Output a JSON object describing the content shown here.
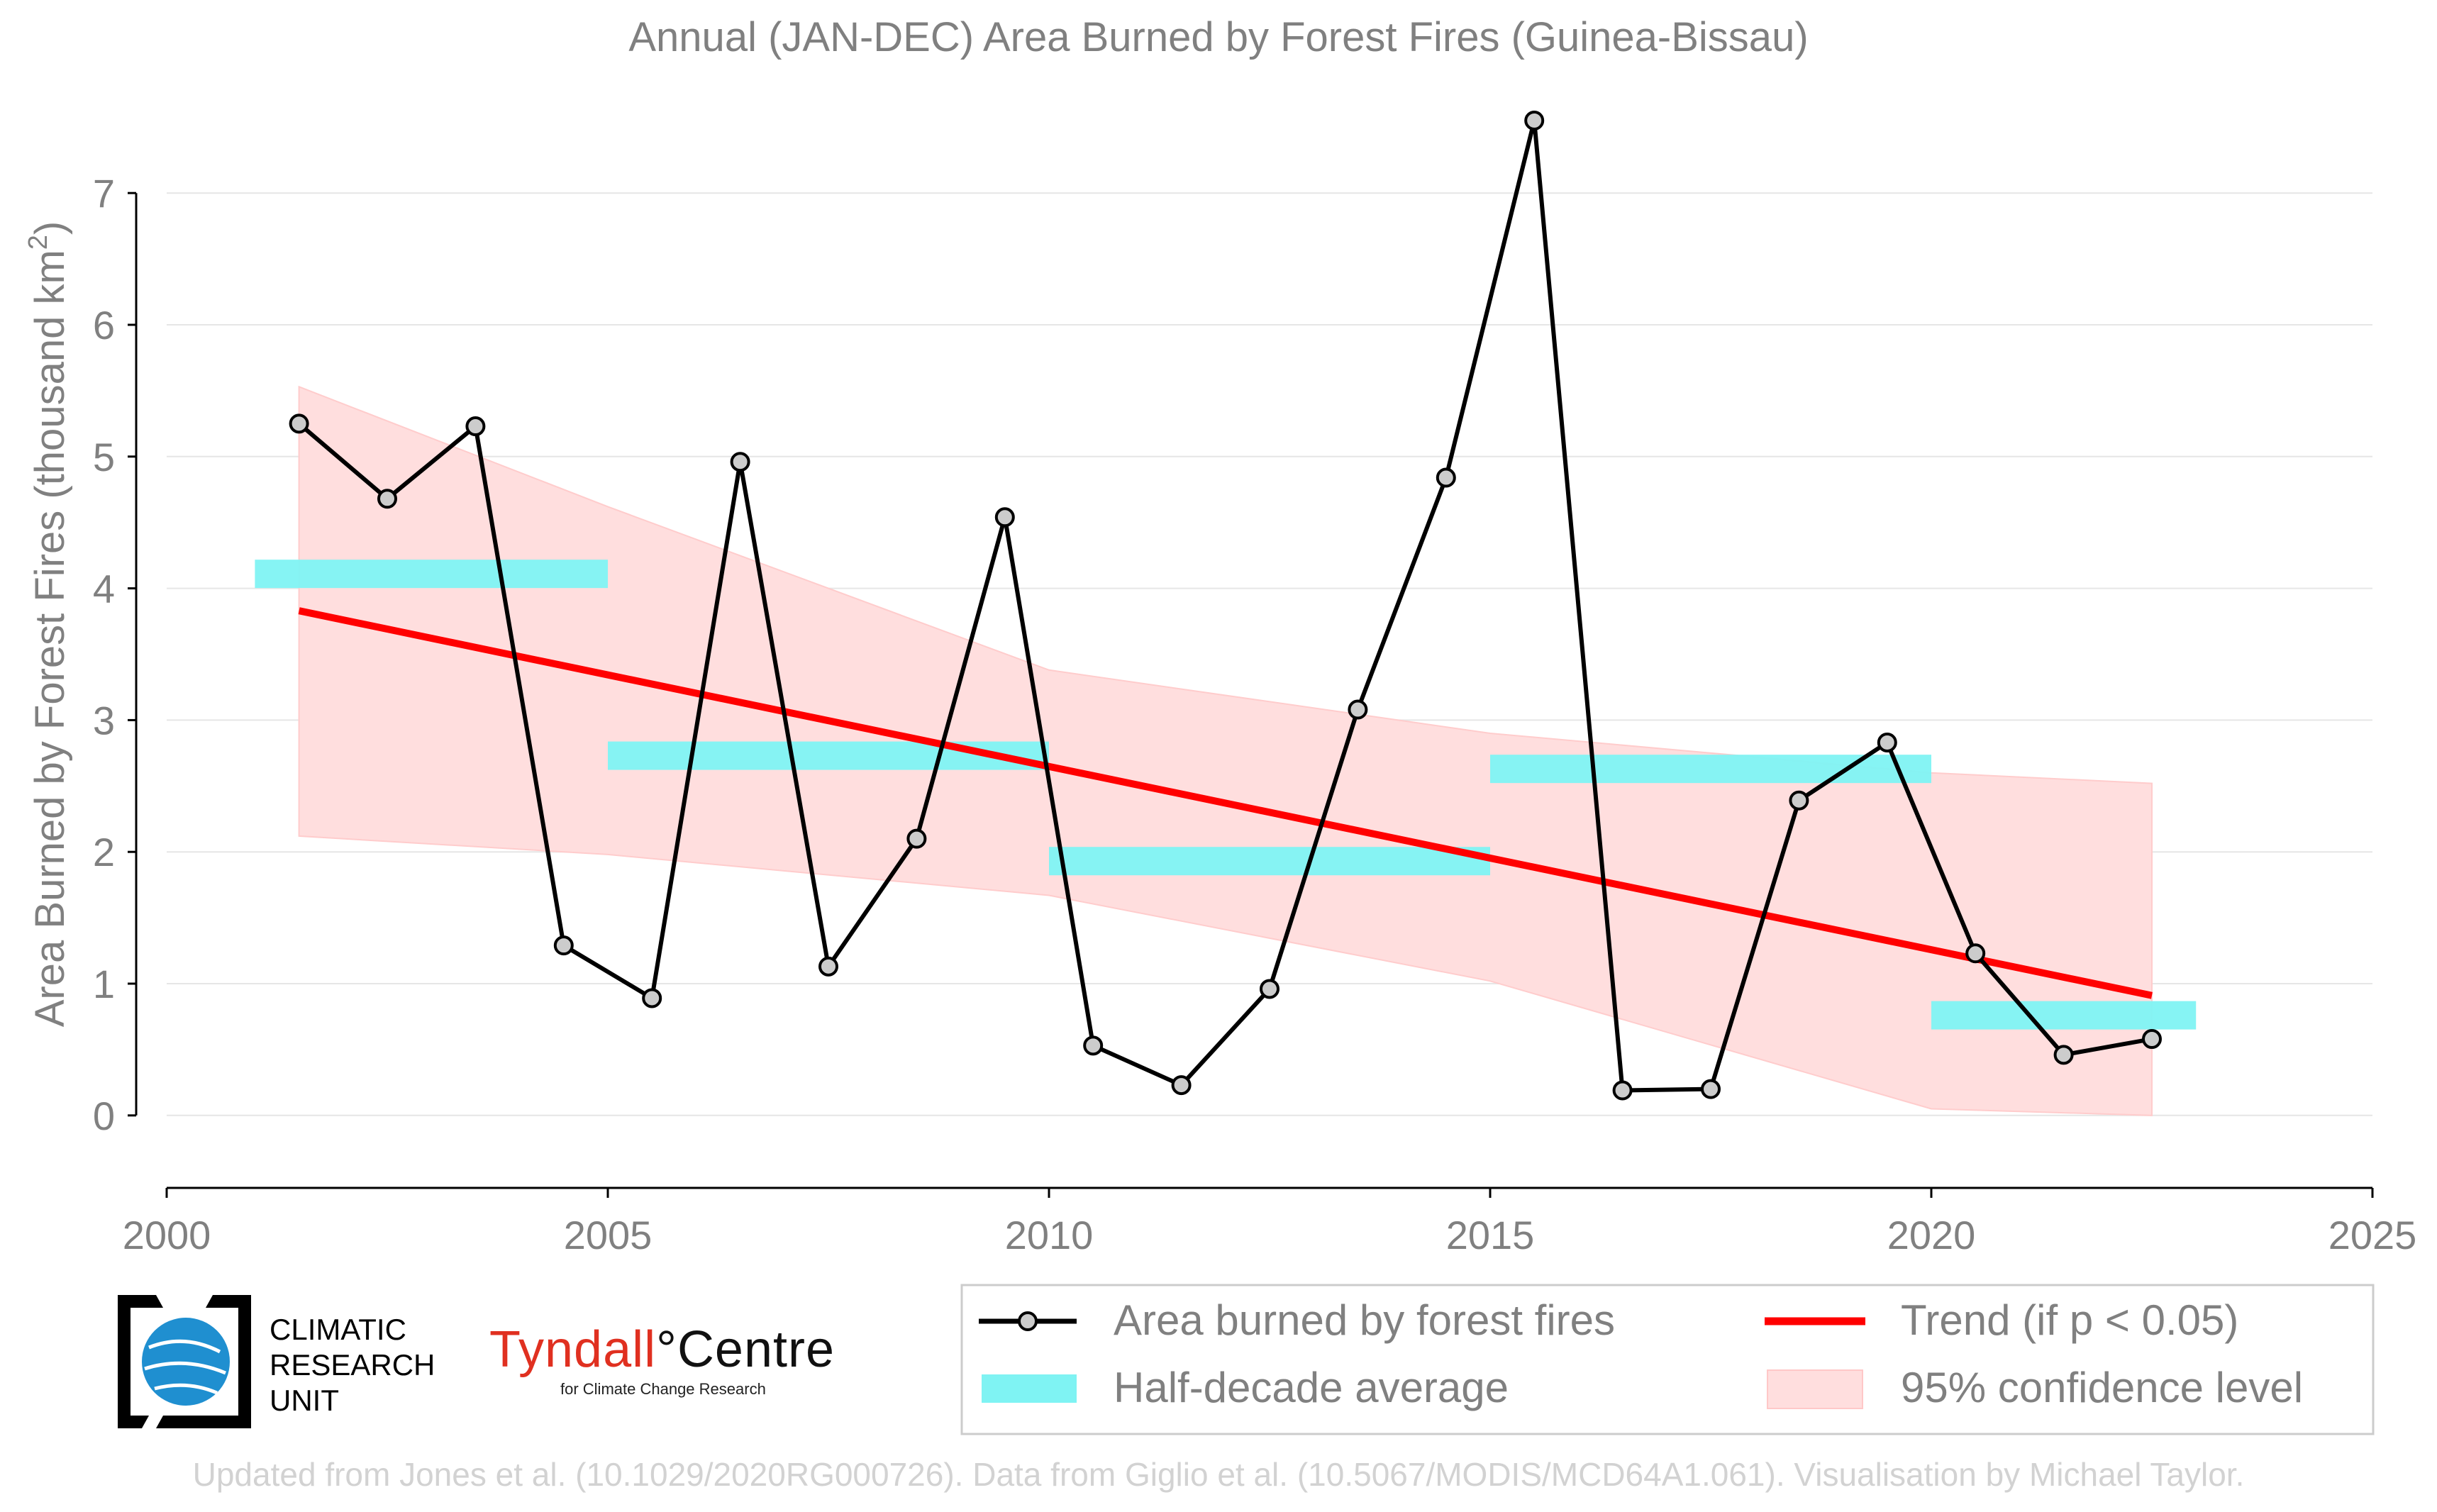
{
  "chart_data": {
    "type": "line",
    "title": "Annual (JAN-DEC) Area Burned by Forest Fires (Guinea-Bissau)",
    "ylabel": "Area Burned by Forest Fires (thousand km",
    "ylabel_sup": "2",
    "ylabel_end": ")",
    "xlabel": "",
    "xlim": [
      2000,
      2025
    ],
    "ylim": [
      -0.55,
      7.55
    ],
    "x_ticks": [
      2000,
      2005,
      2010,
      2015,
      2020,
      2025
    ],
    "y_ticks": [
      0,
      1,
      2,
      3,
      4,
      5,
      6,
      7
    ],
    "grid": "horizontal",
    "series": [
      {
        "name": "Area burned by forest fires",
        "style": "line-markers",
        "color": "#000000",
        "marker_color": "#cccccc",
        "x": [
          2001.5,
          2002.5,
          2003.5,
          2004.5,
          2005.5,
          2006.5,
          2007.5,
          2008.5,
          2009.5,
          2010.5,
          2011.5,
          2012.5,
          2013.5,
          2014.5,
          2015.5,
          2016.5,
          2017.5,
          2018.5,
          2019.5,
          2020.5,
          2021.5,
          2022.5
        ],
        "values": [
          5.25,
          4.68,
          5.23,
          1.29,
          0.89,
          4.96,
          1.13,
          2.1,
          4.54,
          0.53,
          0.23,
          0.96,
          3.08,
          4.84,
          7.55,
          0.19,
          0.2,
          2.39,
          2.83,
          1.23,
          0.46,
          0.58
        ]
      },
      {
        "name": "Half-decade average",
        "style": "bars",
        "color": "#7ff3f3",
        "segments": [
          {
            "x0": 2001,
            "x1": 2005,
            "y": 4.11
          },
          {
            "x0": 2005,
            "x1": 2010,
            "y": 2.73
          },
          {
            "x0": 2010,
            "x1": 2015,
            "y": 1.93
          },
          {
            "x0": 2015,
            "x1": 2020,
            "y": 2.63
          },
          {
            "x0": 2020,
            "x1": 2023,
            "y": 0.76
          }
        ]
      },
      {
        "name": "Trend (if p < 0.05)",
        "style": "line",
        "color": "#ff0000",
        "x": [
          2001.5,
          2022.5
        ],
        "values": [
          3.83,
          0.91
        ]
      },
      {
        "name": "95% confidence level",
        "style": "band",
        "color": "#ffdede",
        "x": [
          2001.5,
          2005,
          2010,
          2015,
          2020,
          2022.5
        ],
        "upper": [
          5.53,
          4.62,
          3.38,
          2.9,
          2.6,
          2.52
        ],
        "lower": [
          2.12,
          1.98,
          1.67,
          1.02,
          0.05,
          0.0
        ]
      }
    ],
    "legend": {
      "position": "bottom-right",
      "entries": [
        "Area burned by forest fires",
        "Trend (if p < 0.05)",
        "Half-decade average",
        "95% confidence level"
      ]
    }
  },
  "logos": {
    "cru": [
      "CLIMATIC",
      "RESEARCH",
      "UNIT"
    ],
    "tyndall_name": "Tyndall",
    "tyndall_degree": "°",
    "tyndall_centre": "Centre",
    "tyndall_sub": "for Climate Change Research"
  },
  "footer": "Updated from Jones et al. (10.1029/2020RG000726). Data from Giglio et al. (10.5067/MODIS/MCD64A1.061). Visualisation by Michael Taylor.",
  "colors": {
    "axis_text": "#808080",
    "grid": "#e6e6e6",
    "cru_blue": "#1f8fd0"
  }
}
